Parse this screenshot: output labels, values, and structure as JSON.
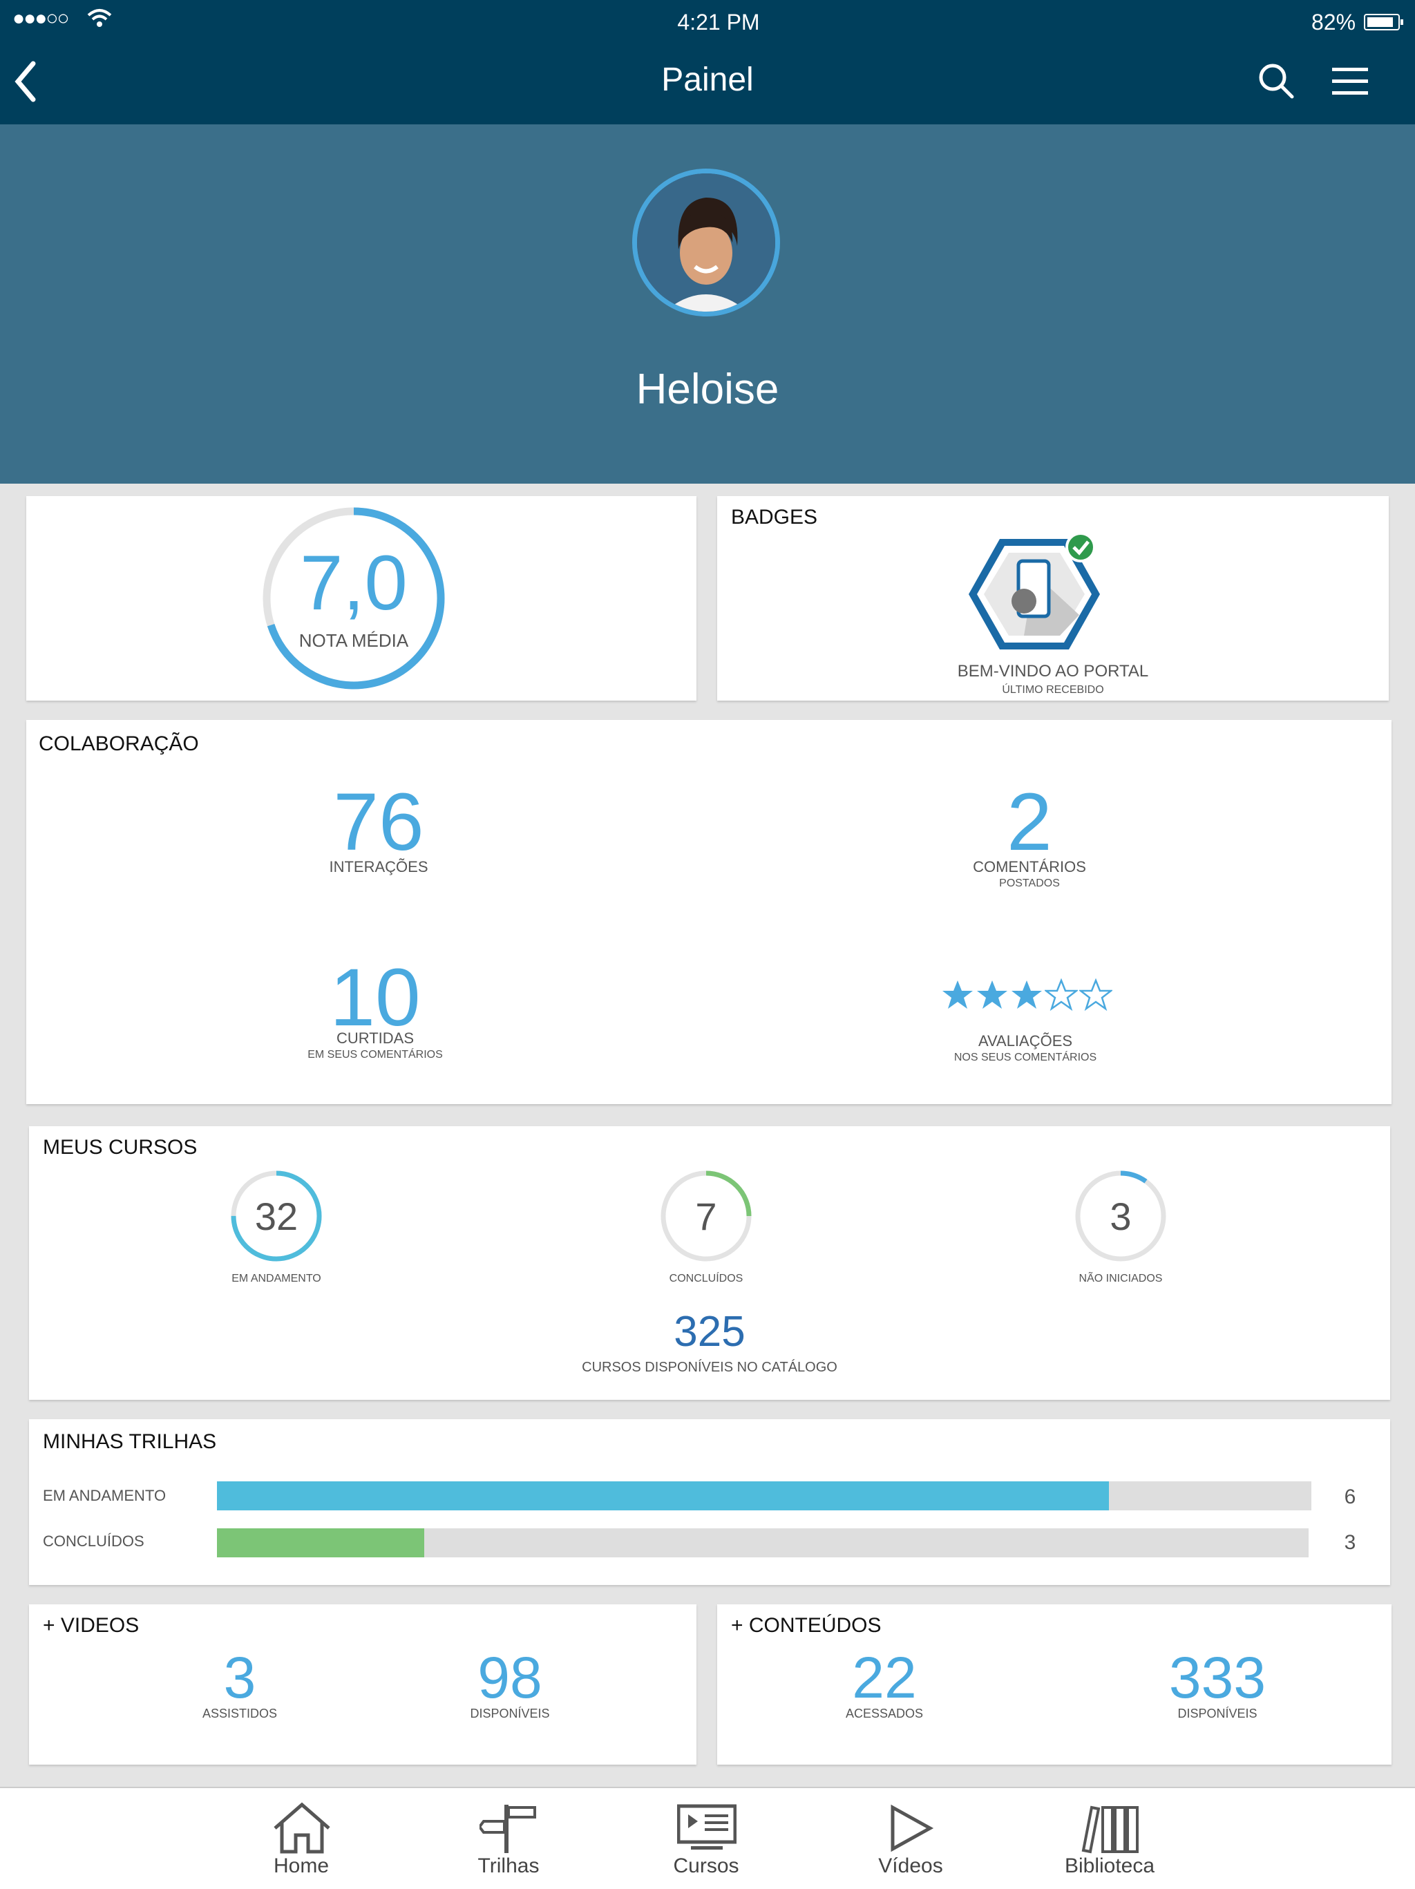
{
  "status": {
    "time": "4:21 PM",
    "battery": "82%",
    "signal": "●●●○○"
  },
  "nav": {
    "title": "Painel"
  },
  "profile": {
    "name": "Heloise"
  },
  "grade": {
    "value": "7,0",
    "label": "NOTA MÉDIA",
    "fraction": 0.7
  },
  "badges": {
    "title": "BADGES",
    "name": "BEM-VINDO AO PORTAL",
    "sub": "ÚLTIMO RECEBIDO"
  },
  "collab": {
    "title": "COLABORAÇÃO",
    "interactions": {
      "value": "76",
      "label": "INTERAÇÕES"
    },
    "comments": {
      "value": "2",
      "label": "COMENTÁRIOS",
      "sub": "POSTADOS"
    },
    "likes": {
      "value": "10",
      "label": "CURTIDAS",
      "sub": "EM SEUS COMENTÁRIOS"
    },
    "ratings": {
      "stars": 3,
      "max": 5,
      "label": "AVALIAÇÕES",
      "sub": "NOS SEUS COMENTÁRIOS"
    }
  },
  "courses": {
    "title": "MEUS CURSOS",
    "in_progress": {
      "value": "32",
      "label": "EM ANDAMENTO",
      "fraction": 0.75
    },
    "done": {
      "value": "7",
      "label": "CONCLUÍDOS",
      "fraction": 0.25
    },
    "not_started": {
      "value": "3",
      "label": "NÃO INICIADOS",
      "fraction": 0.1
    },
    "catalog": {
      "value": "325",
      "label": "CURSOS DISPONÍVEIS NO CATÁLOGO"
    }
  },
  "trails": {
    "title": "MINHAS TRILHAS",
    "rows": [
      {
        "label": "EM ANDAMENTO",
        "count": "6",
        "fraction": 0.815,
        "color": "#4fbcdc"
      },
      {
        "label": "CONCLUÍDOS",
        "count": "3",
        "fraction": 0.19,
        "color": "#7cc576"
      }
    ]
  },
  "videos": {
    "title": "+ VIDEOS",
    "watched": {
      "value": "3",
      "label": "ASSISTIDOS"
    },
    "available": {
      "value": "98",
      "label": "DISPONÍVEIS"
    }
  },
  "contents": {
    "title": "+ CONTEÚDOS",
    "accessed": {
      "value": "22",
      "label": "ACESSADOS"
    },
    "available": {
      "value": "333",
      "label": "DISPONÍVEIS"
    }
  },
  "tabs": [
    "Home",
    "Trilhas",
    "Cursos",
    "Vídeos",
    "Biblioteca"
  ],
  "colors": {
    "header": "#003f5c",
    "profile_bg": "#3b6f8a",
    "accent": "#4aa9df",
    "green": "#7cc576"
  }
}
